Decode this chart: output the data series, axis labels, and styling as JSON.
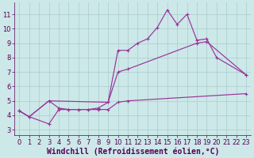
{
  "background_color": "#cce8e8",
  "line_color": "#993399",
  "xlabel": "Windchill (Refroidissement éolien,°C)",
  "xlabel_fontsize": 7.0,
  "xlim": [
    -0.5,
    23.5
  ],
  "ylim": [
    2.6,
    11.8
  ],
  "yticks": [
    3,
    4,
    5,
    6,
    7,
    8,
    9,
    10,
    11
  ],
  "xticks": [
    0,
    1,
    2,
    3,
    4,
    5,
    6,
    7,
    8,
    9,
    10,
    11,
    12,
    13,
    14,
    15,
    16,
    17,
    18,
    19,
    20,
    21,
    22,
    23
  ],
  "grid_color": "#aacccc",
  "tick_fontsize": 6.0,
  "line_upper_x": [
    0,
    1,
    3,
    4,
    5,
    6,
    7,
    8,
    9,
    10,
    11,
    12,
    13,
    14,
    15,
    16,
    17,
    18,
    19,
    20,
    23
  ],
  "line_upper_y": [
    4.3,
    3.9,
    5.0,
    4.5,
    4.4,
    4.4,
    4.4,
    4.5,
    4.9,
    8.5,
    8.5,
    9.0,
    9.3,
    10.1,
    11.3,
    10.3,
    11.0,
    9.2,
    9.3,
    8.0,
    6.8
  ],
  "line_mid_x": [
    0,
    1,
    3,
    9,
    10,
    11,
    18,
    19,
    23
  ],
  "line_mid_y": [
    4.3,
    3.9,
    5.0,
    4.9,
    7.0,
    7.2,
    9.0,
    9.1,
    6.8
  ],
  "line_lower_x": [
    0,
    1,
    3,
    4,
    5,
    6,
    7,
    8,
    9,
    10,
    11,
    23
  ],
  "line_lower_y": [
    4.3,
    3.9,
    3.4,
    4.4,
    4.4,
    4.4,
    4.4,
    4.4,
    4.4,
    4.9,
    5.0,
    5.5
  ]
}
